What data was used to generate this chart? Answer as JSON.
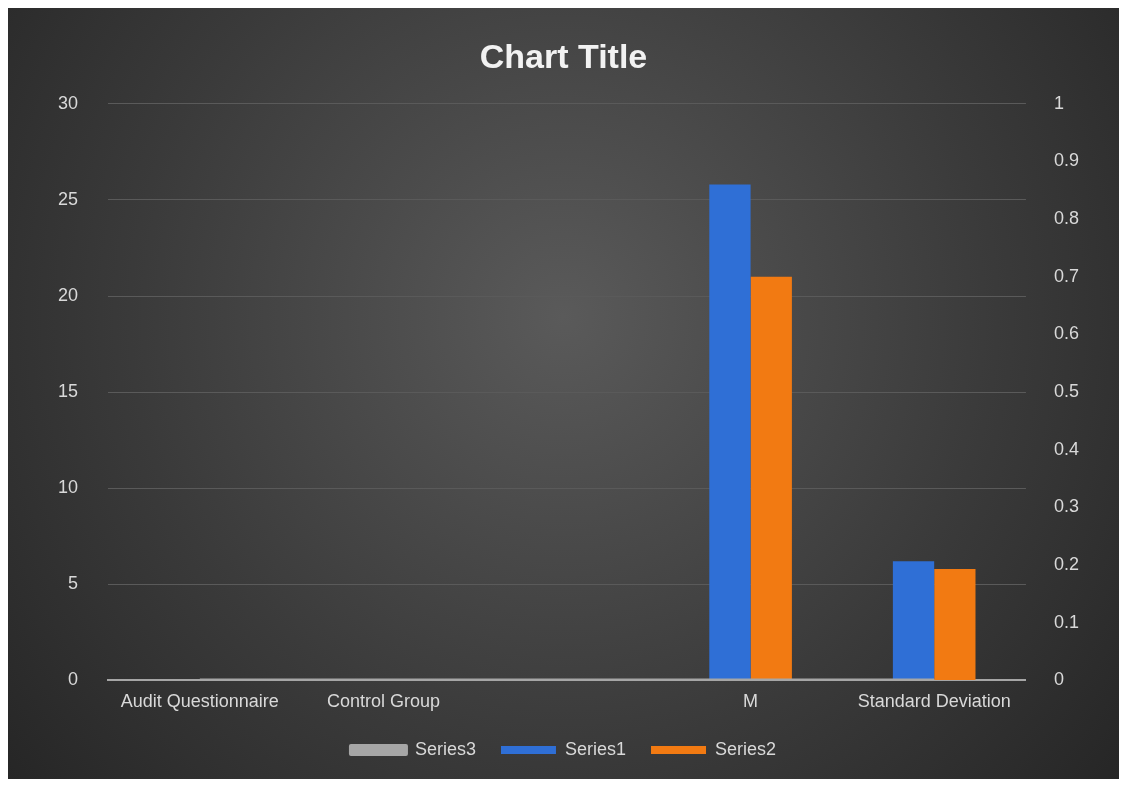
{
  "chart_data": {
    "type": "bar",
    "title": "Chart Title",
    "categories": [
      "Audit Questionnaire",
      "Control Group",
      null,
      "M",
      "Standard Deviation"
    ],
    "series": [
      {
        "name": "Series1",
        "color": "#2f6fd6",
        "values": [
          0,
          0,
          0,
          25.8,
          6.2
        ]
      },
      {
        "name": "Series2",
        "color": "#f27a12",
        "values": [
          0,
          0,
          0,
          21,
          5.8
        ]
      },
      {
        "name": "Series3",
        "color": "#a6a6a6",
        "type": "line",
        "axis": "y2",
        "values": [
          0,
          0,
          0,
          0,
          0
        ]
      }
    ],
    "ylim": [
      0,
      30
    ],
    "yticks": [
      0,
      5,
      10,
      15,
      20,
      25,
      30
    ],
    "y2lim": [
      0,
      1
    ],
    "y2ticks": [
      0,
      0.1,
      0.2,
      0.3,
      0.4,
      0.5,
      0.6,
      0.7,
      0.8,
      0.9,
      1
    ],
    "grid": "y",
    "legend": "bottom",
    "marker": "none"
  }
}
